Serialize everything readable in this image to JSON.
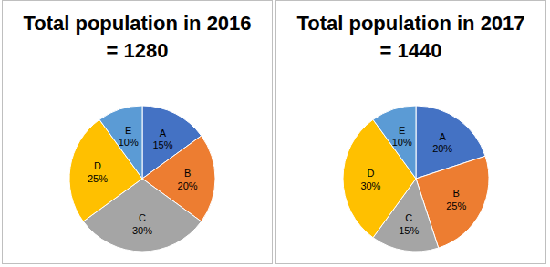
{
  "chart_data": [
    {
      "type": "pie",
      "title": "Total population in 2016 = 1280",
      "categories": [
        "A",
        "B",
        "C",
        "D",
        "E"
      ],
      "values": [
        15,
        20,
        30,
        25,
        10
      ],
      "value_labels": [
        "15%",
        "20%",
        "30%",
        "25%",
        "10%"
      ],
      "colors": [
        "#4472c4",
        "#ed7d31",
        "#a5a5a5",
        "#ffc000",
        "#5b9bd5"
      ],
      "data_labels": true
    },
    {
      "type": "pie",
      "title": "Total population in 2017 = 1440",
      "categories": [
        "A",
        "B",
        "C",
        "D",
        "E"
      ],
      "values": [
        20,
        25,
        15,
        30,
        10
      ],
      "value_labels": [
        "20%",
        "25%",
        "15%",
        "30%",
        "10%"
      ],
      "colors": [
        "#4472c4",
        "#ed7d31",
        "#a5a5a5",
        "#ffc000",
        "#5b9bd5"
      ],
      "data_labels": true
    }
  ]
}
